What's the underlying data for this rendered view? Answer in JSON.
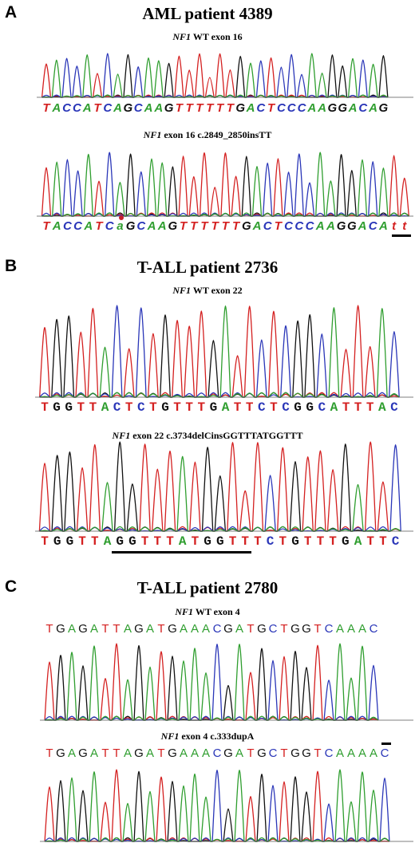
{
  "colors": {
    "A": "#2f9e2f",
    "C": "#2a36b8",
    "G": "#111111",
    "T": "#d42020",
    "marker": "#c8202a"
  },
  "panels": [
    {
      "letter": "A",
      "title": "AML patient 4389",
      "traces": [
        {
          "gene": "NF1",
          "label": "WT exon 16",
          "sequence": "TACCATCAGCAAGTTTTTTGACTCCCAAGGACAG"
        },
        {
          "gene": "NF1",
          "label": "exon 16 c.2849_2850insTT",
          "sequence": "TACCATCaGCAAGTTTTTTGACTCCCAAGGACAtt"
        }
      ]
    },
    {
      "letter": "B",
      "title": "T-ALL patient 2736",
      "traces": [
        {
          "gene": "NF1",
          "label": "WT exon 22",
          "sequence": "TGGTTACTCTGTTTGATTCTCGGCATTTAC"
        },
        {
          "gene": "NF1",
          "label": "exon 22  c.3734delCinsGGTTTATGGTTT",
          "sequence": "TGGTTAGGTTTATGGTTTCTGTTTGATTC"
        }
      ]
    },
    {
      "letter": "C",
      "title": "T-ALL patient 2780",
      "traces": [
        {
          "gene": "NF1",
          "label": "WT exon 4",
          "sequence": "TGAGATTAGATGAAACGATGCTGGTCAAAC"
        },
        {
          "gene": "NF1",
          "label": "exon 4 c.333dupA",
          "sequence": "TGAGATTAGATGAAACGATGCTGGTCAAAAC"
        }
      ]
    }
  ]
}
